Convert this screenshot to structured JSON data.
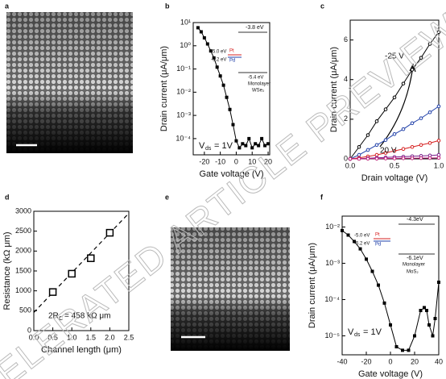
{
  "watermark": "ELERATED ARTICLE PREVIEW",
  "images": [
    {
      "panel": "a"
    },
    {
      "panel": "e"
    }
  ],
  "chart_data": [
    {
      "panel": "b",
      "type": "line",
      "log_y": true,
      "marker": "square",
      "xlabel": "Gate voltage (V)",
      "ylabel": "Drain current (μA/μm)",
      "xlim": [
        -27,
        21
      ],
      "xticks": [
        -20,
        -10,
        0,
        10,
        20
      ],
      "ylim": [
        2e-05,
        10
      ],
      "yticks": [
        {
          "value": 0.0001,
          "label": "10⁻⁴"
        },
        {
          "value": 0.001,
          "label": "10⁻³"
        },
        {
          "value": 0.01,
          "label": "10⁻²"
        },
        {
          "value": 0.1,
          "label": "10⁻¹"
        },
        {
          "value": 1,
          "label": "10⁰"
        },
        {
          "value": 10,
          "label": "10¹"
        }
      ],
      "x": [
        -24,
        -22,
        -20,
        -18,
        -16,
        -14,
        -12,
        -10,
        -8,
        -6,
        -4,
        -2,
        0,
        2,
        4,
        6,
        8,
        10,
        12,
        14,
        16,
        18,
        20
      ],
      "series": [
        {
          "color": "#000000",
          "values": [
            6,
            4,
            2.2,
            1.2,
            0.6,
            0.3,
            0.12,
            0.05,
            0.02,
            0.006,
            0.0018,
            0.0004,
            8e-05,
            4e-05,
            6e-05,
            5e-05,
            0.0001,
            4e-05,
            6e-05,
            5e-05,
            0.0001,
            5e-05,
            6e-05
          ]
        }
      ],
      "annotations": [
        "-3.8 eV",
        "-5.0 eV",
        "Pt",
        "-5.2 eV",
        "Pd",
        "-5.4 eV",
        "Monolayer",
        "WSe₂",
        "V",
        "ds",
        "= 1V"
      ]
    },
    {
      "panel": "c",
      "type": "line",
      "log_y": false,
      "marker": "circle",
      "xlabel": "Drain voltage (V)",
      "ylabel": "Drain current (μA/μm)",
      "xlim": [
        0,
        1
      ],
      "xticks": [
        {
          "value": 0,
          "label": "0.0"
        },
        0.5,
        {
          "value": 1,
          "label": "1.0"
        }
      ],
      "ylim": [
        0,
        7
      ],
      "yticks": [
        0,
        2,
        4,
        6
      ],
      "x": [
        0,
        0.1,
        0.2,
        0.3,
        0.4,
        0.5,
        0.6,
        0.7,
        0.8,
        0.9,
        1
      ],
      "series": [
        {
          "color": "#000000",
          "values": [
            0,
            0.6,
            1.2,
            1.9,
            2.5,
            3.1,
            3.8,
            4.5,
            5.1,
            5.8,
            6.4
          ]
        },
        {
          "color": "#1f3fa8",
          "values": [
            0,
            0.2,
            0.45,
            0.7,
            0.95,
            1.25,
            1.5,
            1.8,
            2.05,
            2.35,
            2.65
          ]
        },
        {
          "color": "#d62020",
          "values": [
            0,
            0.05,
            0.12,
            0.2,
            0.3,
            0.4,
            0.5,
            0.6,
            0.7,
            0.8,
            0.92
          ]
        },
        {
          "color": "#7a1f8a",
          "values": [
            0,
            0.01,
            0.03,
            0.05,
            0.07,
            0.09,
            0.11,
            0.13,
            0.15,
            0.17,
            0.2
          ]
        },
        {
          "color": "#c0207a",
          "values": [
            0,
            0,
            0.01,
            0.01,
            0.02,
            0.02,
            0.03,
            0.03,
            0.04,
            0.04,
            0.05
          ]
        }
      ],
      "annotations": [
        "-25 V",
        "20 V"
      ]
    },
    {
      "panel": "d",
      "type": "scatter",
      "log_y": false,
      "marker": "open-square",
      "xlabel": "Channel length (μm)",
      "ylabel": "Resistance (kΩ μm)",
      "xlim": [
        0,
        2.5
      ],
      "xticks": [
        {
          "value": 0,
          "label": "0.0"
        },
        0.5,
        {
          "value": 1,
          "label": "1.0"
        },
        1.5,
        {
          "value": 2,
          "label": "2.0"
        },
        2.5
      ],
      "ylim": [
        0,
        3000
      ],
      "yticks": [
        0,
        500,
        1000,
        1500,
        2000,
        2500,
        3000
      ],
      "x": [
        0.5,
        1,
        1.5,
        2
      ],
      "series": [
        {
          "color": "#000000",
          "values": [
            970,
            1430,
            1820,
            2460
          ]
        }
      ],
      "fit": {
        "x": [
          0,
          2.5
        ],
        "values": [
          458,
          2950
        ]
      },
      "annotations": [
        "2R",
        "C",
        "= 458 kΩ μm"
      ]
    },
    {
      "panel": "f",
      "type": "line",
      "log_y": true,
      "marker": "square",
      "xlabel": "Gate voltage (V)",
      "ylabel": "Drain current (μA/μm)",
      "xlim": [
        -40,
        40
      ],
      "xticks": [
        -40,
        -20,
        0,
        20,
        40
      ],
      "ylim": [
        3e-06,
        0.02
      ],
      "yticks": [
        {
          "value": 1e-05,
          "label": "10⁻⁵"
        },
        {
          "value": 0.0001,
          "label": "10⁻⁴"
        },
        {
          "value": 0.001,
          "label": "10⁻³"
        },
        {
          "value": 0.01,
          "label": "10⁻²"
        }
      ],
      "x": [
        -40,
        -35,
        -30,
        -25,
        -20,
        -15,
        -10,
        -5,
        0,
        5,
        10,
        15,
        20,
        25,
        28,
        30,
        32,
        35,
        37,
        40
      ],
      "series": [
        {
          "color": "#000000",
          "values": [
            0.008,
            0.006,
            0.004,
            0.0025,
            0.0013,
            0.0006,
            0.00025,
            8e-05,
            2e-05,
            5e-06,
            4e-06,
            4e-06,
            1e-05,
            5e-05,
            6e-05,
            5e-05,
            2e-05,
            1e-05,
            3e-05,
            0.0003
          ]
        }
      ],
      "annotations": [
        "-4.3eV",
        "-5.0 eV",
        "Pt",
        "-5.2 eV",
        "Pd",
        "-6.1eV",
        "Monolayer",
        "MoS₂",
        "V",
        "ds",
        "= 1V"
      ]
    }
  ]
}
